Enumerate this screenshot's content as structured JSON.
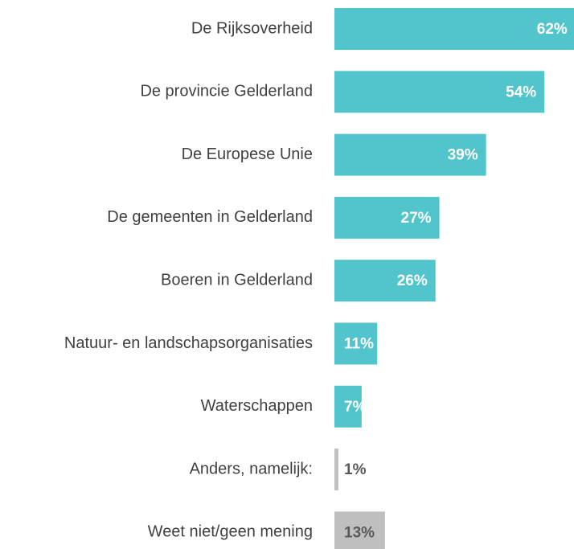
{
  "chart_data": {
    "type": "bar",
    "orientation": "horizontal",
    "categories": [
      "De Rijksoverheid",
      "De provincie Gelderland",
      "De Europese Unie",
      "De gemeenten in Gelderland",
      "Boeren in Gelderland",
      "Natuur- en landschapsorganisaties",
      "Waterschappen",
      "Anders, namelijk:",
      "Weet niet/geen mening"
    ],
    "values": [
      62,
      54,
      39,
      27,
      26,
      11,
      7,
      1,
      13
    ],
    "value_labels": [
      "62%",
      "54%",
      "39%",
      "27%",
      "26%",
      "11%",
      "7%",
      "1%",
      "13%"
    ],
    "colors": [
      "#52c5cc",
      "#52c5cc",
      "#52c5cc",
      "#52c5cc",
      "#52c5cc",
      "#52c5cc",
      "#52c5cc",
      "#bfbfbf",
      "#bfbfbf"
    ],
    "xlim": [
      0,
      61
    ]
  }
}
